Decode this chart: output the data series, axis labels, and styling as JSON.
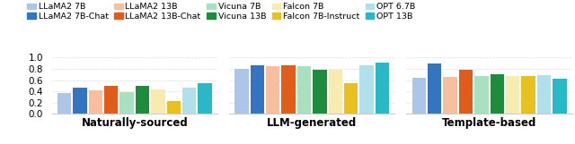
{
  "groups": [
    "Naturally-sourced",
    "LLM-generated",
    "Template-based"
  ],
  "models": [
    "LLaMA2 7B",
    "LLaMA2 7B-Chat",
    "LLaMA2 13B",
    "LLaMA2 13B-Chat",
    "Vicuna 7B",
    "Vicuna 13B",
    "Falcon 7B",
    "Falcon 7B-Instruct",
    "OPT 6.7B",
    "OPT 13B"
  ],
  "colors": [
    "#adc6e8",
    "#3575c0",
    "#f5bfa0",
    "#e05c1a",
    "#a8e0c0",
    "#1d8c3c",
    "#f8ebb0",
    "#e8c020",
    "#b0e0ec",
    "#28b8c8"
  ],
  "values": [
    [
      0.37,
      0.47,
      0.41,
      0.49,
      0.39,
      0.5,
      0.44,
      0.23,
      0.47,
      0.55
    ],
    [
      0.8,
      0.86,
      0.85,
      0.86,
      0.85,
      0.78,
      0.79,
      0.55,
      0.86,
      0.91
    ],
    [
      0.64,
      0.9,
      0.66,
      0.78,
      0.67,
      0.7,
      0.67,
      0.67,
      0.69,
      0.62
    ]
  ],
  "ylim": [
    0.0,
    1.0
  ],
  "yticks": [
    0.0,
    0.2,
    0.4,
    0.6,
    0.8,
    1.0
  ],
  "figsize": [
    6.4,
    1.61
  ],
  "dpi": 100,
  "legend_fontsize": 6.8,
  "xlabel_fontsize": 8.5,
  "ytick_fontsize": 7.5
}
